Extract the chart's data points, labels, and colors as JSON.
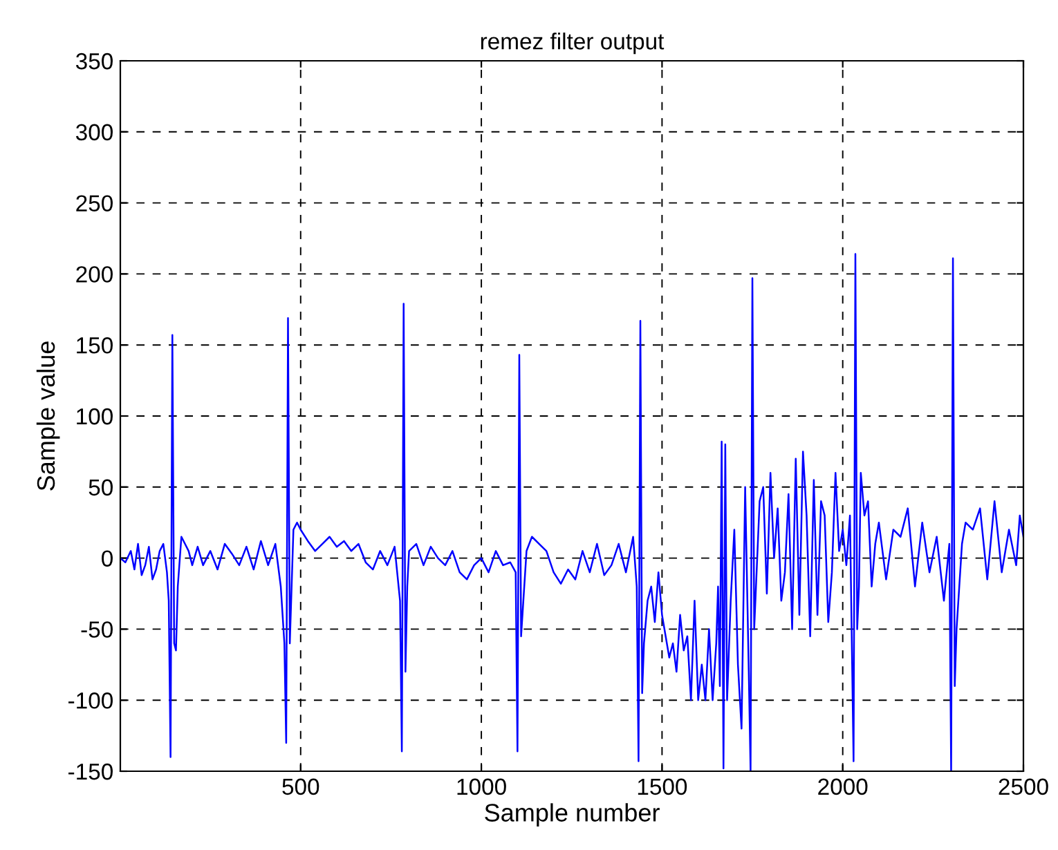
{
  "chart_data": {
    "type": "line",
    "title": "remez filter output",
    "xlabel": "Sample number",
    "ylabel": "Sample value",
    "xlim": [
      1,
      2500
    ],
    "ylim": [
      -150,
      350
    ],
    "xticks": [
      500,
      1000,
      1500,
      2000,
      2500
    ],
    "yticks": [
      -150,
      -100,
      -50,
      0,
      50,
      100,
      150,
      200,
      250,
      300,
      350
    ],
    "grid": true,
    "series": [
      {
        "color": "#0000ff",
        "x": [
          1,
          15,
          30,
          40,
          50,
          60,
          70,
          80,
          90,
          100,
          110,
          120,
          130,
          135,
          140,
          145,
          150,
          155,
          160,
          170,
          180,
          190,
          200,
          215,
          230,
          250,
          270,
          290,
          310,
          330,
          350,
          370,
          390,
          410,
          430,
          445,
          455,
          460,
          465,
          470,
          475,
          480,
          490,
          500,
          520,
          540,
          560,
          580,
          600,
          620,
          640,
          660,
          680,
          700,
          720,
          740,
          760,
          775,
          780,
          785,
          790,
          795,
          800,
          820,
          840,
          860,
          880,
          900,
          920,
          940,
          960,
          980,
          1000,
          1020,
          1040,
          1060,
          1080,
          1095,
          1100,
          1105,
          1110,
          1115,
          1125,
          1140,
          1160,
          1180,
          1200,
          1220,
          1240,
          1260,
          1280,
          1300,
          1320,
          1340,
          1360,
          1380,
          1400,
          1420,
          1430,
          1435,
          1440,
          1445,
          1450,
          1460,
          1470,
          1480,
          1490,
          1500,
          1510,
          1520,
          1530,
          1540,
          1550,
          1560,
          1570,
          1580,
          1590,
          1600,
          1610,
          1620,
          1630,
          1640,
          1650,
          1655,
          1660,
          1665,
          1670,
          1675,
          1680,
          1690,
          1700,
          1710,
          1720,
          1730,
          1740,
          1745,
          1750,
          1755,
          1760,
          1770,
          1780,
          1790,
          1800,
          1810,
          1820,
          1830,
          1840,
          1850,
          1860,
          1870,
          1880,
          1890,
          1900,
          1910,
          1920,
          1930,
          1940,
          1950,
          1960,
          1970,
          1980,
          1990,
          2000,
          2010,
          2020,
          2030,
          2035,
          2040,
          2045,
          2050,
          2060,
          2070,
          2080,
          2090,
          2100,
          2120,
          2140,
          2160,
          2180,
          2200,
          2220,
          2240,
          2260,
          2280,
          2295,
          2300,
          2305,
          2310,
          2315,
          2320,
          2330,
          2340,
          2360,
          2380,
          2400,
          2420,
          2440,
          2460,
          2480,
          2490,
          2500
        ],
        "values": [
          0,
          -3,
          5,
          -8,
          10,
          -12,
          -5,
          8,
          -15,
          -8,
          5,
          10,
          -10,
          -30,
          -140,
          157,
          -60,
          -65,
          -20,
          15,
          10,
          5,
          -5,
          8,
          -5,
          5,
          -8,
          10,
          3,
          -5,
          8,
          -8,
          12,
          -5,
          10,
          -20,
          -60,
          -130,
          169,
          -60,
          -20,
          20,
          25,
          20,
          12,
          5,
          10,
          15,
          8,
          12,
          5,
          10,
          -3,
          -8,
          5,
          -5,
          8,
          -30,
          -136,
          179,
          -80,
          -20,
          5,
          10,
          -5,
          8,
          0,
          -5,
          5,
          -10,
          -15,
          -5,
          0,
          -10,
          5,
          -5,
          -3,
          -10,
          -136,
          143,
          -55,
          -35,
          5,
          15,
          10,
          5,
          -10,
          -18,
          -8,
          -15,
          5,
          -10,
          10,
          -12,
          -5,
          10,
          -10,
          15,
          -20,
          -143,
          167,
          -95,
          -60,
          -30,
          -20,
          -45,
          -10,
          -40,
          -55,
          -70,
          -60,
          -80,
          -40,
          -65,
          -55,
          -100,
          -30,
          -100,
          -75,
          -100,
          -50,
          -100,
          -60,
          -20,
          -90,
          82,
          -148,
          80,
          -100,
          -30,
          20,
          -75,
          -120,
          50,
          -80,
          -150,
          197,
          -50,
          -20,
          40,
          50,
          -25,
          60,
          0,
          35,
          -30,
          -10,
          45,
          -50,
          70,
          -40,
          75,
          30,
          -55,
          55,
          -40,
          40,
          30,
          -45,
          -10,
          60,
          5,
          20,
          -5,
          30,
          -143,
          214,
          -50,
          -20,
          60,
          30,
          40,
          -20,
          10,
          25,
          -15,
          20,
          15,
          35,
          -20,
          25,
          -10,
          15,
          -30,
          10,
          -150,
          211,
          -90,
          -50,
          -30,
          10,
          25,
          20,
          35,
          -15,
          40,
          -10,
          20,
          -5,
          30,
          15
        ]
      }
    ]
  }
}
